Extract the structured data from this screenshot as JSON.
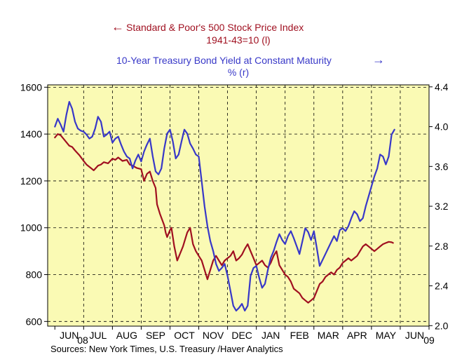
{
  "chart_data": {
    "type": "line",
    "title_left_line1": "Standard & Poor's 500 Stock Price Index",
    "title_left_line2": "1941-43=10   (l)",
    "title_right_line1": "10-Year Treasury Bond Yield at Constant Maturity",
    "title_right_line2": "%   (r)",
    "left_arrow": "←",
    "right_arrow": "→",
    "source": "Sources:  New York Times, U.S. Treasury /Haver Analytics",
    "x_tick_labels": [
      "JUN",
      "JUL",
      "AUG",
      "SEP",
      "OCT",
      "NOV",
      "DEC",
      "JAN",
      "FEB",
      "MAR",
      "APR",
      "MAY",
      "JUN"
    ],
    "year_labels": [
      "08",
      "09"
    ],
    "y_left": {
      "ticks": [
        600,
        800,
        1000,
        1200,
        1400,
        1600
      ],
      "ylim": [
        580,
        1610
      ]
    },
    "y_right": {
      "ticks": [
        "2.0",
        "2.4",
        "2.8",
        "3.2",
        "3.6",
        "4.0",
        "4.4"
      ],
      "ylim": [
        1.995,
        4.42
      ]
    },
    "x_unit": "months since June 1, 2008",
    "xlim": [
      -0.25,
      13.0
    ],
    "grid": true,
    "background": "#fafab4",
    "series": [
      {
        "name": "S&P 500 (l)",
        "axis": "left",
        "color": "#a01020",
        "x": [
          0.0,
          0.1,
          0.2,
          0.3,
          0.4,
          0.5,
          0.6,
          0.7,
          0.85,
          1.0,
          1.1,
          1.2,
          1.35,
          1.5,
          1.6,
          1.7,
          1.85,
          2.0,
          2.1,
          2.2,
          2.35,
          2.5,
          2.6,
          2.7,
          2.85,
          3.0,
          3.1,
          3.2,
          3.3,
          3.4,
          3.5,
          3.55,
          3.65,
          3.8,
          3.85,
          3.9,
          4.0,
          4.05,
          4.15,
          4.25,
          4.35,
          4.45,
          4.5,
          4.6,
          4.7,
          4.8,
          4.9,
          5.0,
          5.1,
          5.2,
          5.3,
          5.4,
          5.5,
          5.6,
          5.7,
          5.8,
          5.9,
          6.0,
          6.1,
          6.2,
          6.3,
          6.4,
          6.5,
          6.6,
          6.7,
          6.8,
          6.9,
          7.0,
          7.1,
          7.2,
          7.3,
          7.4,
          7.5,
          7.6,
          7.7,
          7.8,
          7.9,
          8.0,
          8.1,
          8.2,
          8.3,
          8.4,
          8.5,
          8.6,
          8.7,
          8.8,
          8.9,
          9.0,
          9.1,
          9.2,
          9.3,
          9.4,
          9.5,
          9.6,
          9.7,
          9.8,
          9.9,
          10.0,
          10.1,
          10.2,
          10.3,
          10.4,
          10.5,
          10.6,
          10.7,
          10.8,
          10.9,
          11.0,
          11.1,
          11.2,
          11.3,
          11.4,
          11.5,
          11.6,
          11.7,
          11.75
        ],
        "values": [
          1385,
          1400,
          1395,
          1380,
          1365,
          1350,
          1345,
          1330,
          1310,
          1285,
          1270,
          1260,
          1245,
          1265,
          1270,
          1280,
          1275,
          1295,
          1290,
          1300,
          1285,
          1290,
          1270,
          1265,
          1255,
          1250,
          1200,
          1230,
          1240,
          1200,
          1170,
          1100,
          1060,
          1010,
          980,
          960,
          990,
          1000,
          920,
          860,
          890,
          920,
          940,
          980,
          1000,
          930,
          900,
          880,
          860,
          820,
          780,
          820,
          860,
          880,
          860,
          840,
          860,
          870,
          880,
          900,
          860,
          870,
          885,
          910,
          930,
          900,
          870,
          840,
          850,
          860,
          840,
          830,
          850,
          880,
          900,
          840,
          820,
          800,
          790,
          770,
          740,
          730,
          720,
          700,
          690,
          680,
          690,
          700,
          730,
          760,
          770,
          790,
          800,
          810,
          800,
          820,
          830,
          850,
          860,
          870,
          860,
          870,
          880,
          900,
          920,
          930,
          920,
          910,
          900,
          910,
          920,
          930,
          935,
          940,
          938,
          935
        ]
      },
      {
        "name": "10-Year Treasury Yield (r)",
        "axis": "right",
        "color": "#3838c8",
        "x": [
          0.0,
          0.1,
          0.2,
          0.3,
          0.4,
          0.5,
          0.6,
          0.7,
          0.8,
          0.9,
          1.0,
          1.1,
          1.2,
          1.3,
          1.4,
          1.5,
          1.6,
          1.7,
          1.8,
          1.9,
          2.0,
          2.1,
          2.2,
          2.3,
          2.4,
          2.5,
          2.6,
          2.7,
          2.8,
          2.9,
          3.0,
          3.1,
          3.2,
          3.3,
          3.4,
          3.5,
          3.6,
          3.7,
          3.8,
          3.9,
          4.0,
          4.1,
          4.2,
          4.3,
          4.4,
          4.5,
          4.6,
          4.7,
          4.8,
          4.9,
          5.0,
          5.1,
          5.2,
          5.3,
          5.4,
          5.5,
          5.6,
          5.7,
          5.8,
          5.9,
          6.0,
          6.1,
          6.2,
          6.3,
          6.4,
          6.5,
          6.6,
          6.7,
          6.8,
          6.9,
          7.0,
          7.1,
          7.2,
          7.3,
          7.4,
          7.5,
          7.6,
          7.7,
          7.8,
          7.9,
          8.0,
          8.1,
          8.2,
          8.3,
          8.4,
          8.5,
          8.6,
          8.7,
          8.8,
          8.9,
          9.0,
          9.1,
          9.2,
          9.3,
          9.4,
          9.5,
          9.6,
          9.7,
          9.8,
          9.9,
          10.0,
          10.1,
          10.2,
          10.3,
          10.4,
          10.5,
          10.6,
          10.7,
          10.8,
          10.9,
          11.0,
          11.1,
          11.2,
          11.3,
          11.4,
          11.5,
          11.6,
          11.7,
          11.8
        ],
        "values": [
          4.0,
          4.08,
          4.02,
          3.95,
          4.12,
          4.25,
          4.18,
          4.05,
          3.98,
          3.96,
          3.95,
          3.92,
          3.88,
          3.9,
          3.98,
          4.1,
          4.05,
          3.9,
          3.92,
          3.95,
          3.84,
          3.88,
          3.9,
          3.82,
          3.75,
          3.7,
          3.68,
          3.58,
          3.66,
          3.72,
          3.65,
          3.75,
          3.82,
          3.88,
          3.7,
          3.55,
          3.52,
          3.58,
          3.78,
          3.93,
          3.97,
          3.85,
          3.68,
          3.72,
          3.85,
          3.97,
          3.93,
          3.83,
          3.78,
          3.72,
          3.7,
          3.45,
          3.2,
          3.0,
          2.85,
          2.75,
          2.62,
          2.55,
          2.58,
          2.62,
          2.5,
          2.35,
          2.2,
          2.15,
          2.18,
          2.22,
          2.15,
          2.2,
          2.5,
          2.58,
          2.6,
          2.48,
          2.38,
          2.42,
          2.56,
          2.68,
          2.75,
          2.84,
          2.92,
          2.86,
          2.82,
          2.9,
          2.95,
          2.88,
          2.8,
          2.72,
          2.85,
          2.98,
          2.94,
          2.86,
          2.95,
          2.78,
          2.6,
          2.66,
          2.72,
          2.78,
          2.84,
          2.9,
          2.85,
          2.96,
          2.98,
          2.95,
          3.0,
          3.08,
          3.15,
          3.12,
          3.05,
          3.08,
          3.2,
          3.3,
          3.4,
          3.5,
          3.58,
          3.72,
          3.7,
          3.62,
          3.7,
          3.92,
          3.97
        ]
      }
    ]
  }
}
